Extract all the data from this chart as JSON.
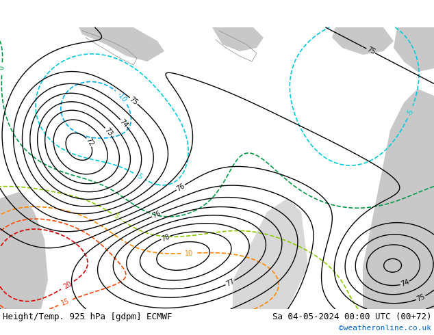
{
  "title_left": "Height/Temp. 925 hPa [gdpm] ECMWF",
  "title_right": "Sa 04-05-2024 00:00 UTC (00+72)",
  "credit": "©weatheronline.co.uk",
  "land_color": "#c8e89a",
  "sea_color": "#c8c8c8",
  "white_area": "#e8e8e8",
  "bottom_bg": "#ffffff",
  "font_size_title": 9,
  "font_size_credit": 8,
  "figsize": [
    6.34,
    4.9
  ],
  "dpi": 100
}
